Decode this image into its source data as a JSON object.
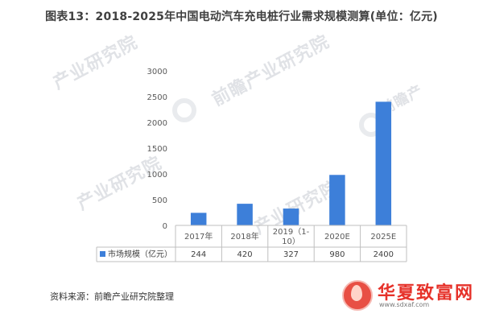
{
  "title": "图表13：2018-2025年中国电动汽车充电桩行业需求规模测算(单位：亿元)",
  "source": "资料来源：前瞻产业研究院整理",
  "watermarks": [
    "产业研究院",
    "前瞻产业研究院",
    "前瞻产"
  ],
  "badge": {
    "name": "华夏致富网",
    "sub": "www.sdxaf.com"
  },
  "colors": {
    "bar": "#3d7fd9",
    "axis": "#bfbfbf",
    "text": "#404040"
  },
  "chart_data": {
    "type": "bar",
    "categories": [
      "2017年",
      "2018年",
      "2019（1-10）",
      "2020E",
      "2025E"
    ],
    "series": [
      {
        "name": "市场规模（亿元）",
        "values": [
          244,
          420,
          327,
          980,
          2400
        ]
      }
    ],
    "ylim": [
      0,
      3000
    ],
    "yticks": [
      "0",
      "500",
      "1000",
      "1500",
      "2000",
      "2500",
      "3000"
    ],
    "table_values": [
      "244",
      "420",
      "327",
      "980",
      "2400"
    ],
    "legend": "bottom-left",
    "grid": false
  }
}
